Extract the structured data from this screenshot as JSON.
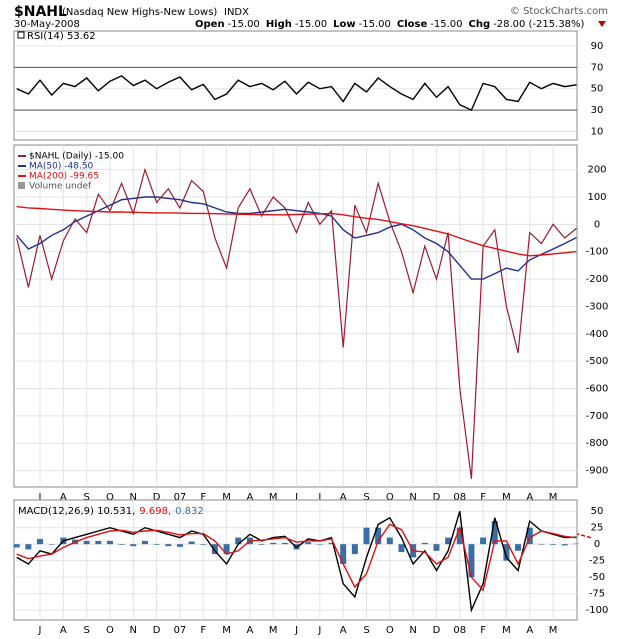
{
  "header": {
    "symbol": "$NAHL",
    "name": "(Nasdaq New Highs-New Lows)",
    "exchange": "INDX",
    "source": "© StockCharts.com",
    "date": "30-May-2008",
    "stats": [
      {
        "label": "Open",
        "value": "-15.00"
      },
      {
        "label": "High",
        "value": "-15.00"
      },
      {
        "label": "Low",
        "value": "-15.00"
      },
      {
        "label": "Close",
        "value": "-15.00"
      },
      {
        "label": "Chg",
        "value": "-28.00 (-215.38%)"
      }
    ]
  },
  "chart_data": [
    {
      "type": "line",
      "title": "RSI(14) 53.62",
      "ylim": [
        2,
        104
      ],
      "yticks": [
        90,
        70,
        50,
        30,
        10
      ],
      "ref_lines": [
        70,
        30
      ],
      "series": [
        {
          "name": "RSI(14)",
          "color": "#000000",
          "values": [
            50,
            45,
            58,
            44,
            55,
            52,
            60,
            48,
            57,
            62,
            53,
            58,
            50,
            56,
            61,
            49,
            54,
            40,
            45,
            58,
            52,
            55,
            49,
            57,
            45,
            56,
            50,
            52,
            38,
            55,
            47,
            60,
            52,
            45,
            40,
            55,
            42,
            52,
            35,
            30,
            55,
            52,
            40,
            38,
            56,
            50,
            55,
            52,
            53.62
          ]
        }
      ]
    },
    {
      "type": "line",
      "ylim": [
        -960,
        290
      ],
      "yticks": [
        200,
        100,
        0,
        -100,
        -200,
        -300,
        -400,
        -500,
        -600,
        -700,
        -800,
        -900
      ],
      "grid": true,
      "volume_label": "Volume undef",
      "categories": [
        null,
        null,
        "J",
        null,
        "A",
        null,
        "S",
        null,
        "O",
        null,
        "N",
        null,
        "D",
        null,
        "07",
        null,
        "F",
        null,
        "M",
        null,
        "A",
        null,
        "M",
        null,
        "J",
        null,
        "J",
        null,
        "A",
        null,
        "S",
        null,
        "O",
        null,
        "N",
        null,
        "D",
        null,
        "08",
        null,
        "F",
        null,
        "M",
        null,
        "A",
        null,
        "M",
        null,
        null
      ],
      "series": [
        {
          "name": "$NAHL (Daily) -15.00",
          "color": "#9b1b30",
          "values": [
            -50,
            -230,
            -40,
            -200,
            -60,
            20,
            -30,
            110,
            50,
            150,
            40,
            200,
            80,
            130,
            60,
            160,
            120,
            -50,
            -160,
            60,
            130,
            30,
            100,
            60,
            -30,
            80,
            0,
            50,
            -450,
            70,
            -30,
            150,
            10,
            -100,
            -250,
            -80,
            -200,
            -30,
            -600,
            -930,
            -80,
            -20,
            -300,
            -470,
            -30,
            -70,
            0,
            -50,
            -15
          ]
        },
        {
          "name": "MA(50) -48.50",
          "color": "#1f2f8f",
          "values": [
            -40,
            -90,
            -70,
            -40,
            -20,
            10,
            30,
            50,
            70,
            90,
            95,
            100,
            100,
            95,
            90,
            80,
            75,
            60,
            45,
            40,
            40,
            45,
            50,
            55,
            50,
            45,
            40,
            30,
            -20,
            -50,
            -40,
            -30,
            -10,
            0,
            -20,
            -50,
            -70,
            -100,
            -150,
            -200,
            -200,
            -180,
            -160,
            -170,
            -130,
            -110,
            -90,
            -70,
            -48.5
          ]
        },
        {
          "name": "MA(200) -99.65",
          "color": "#dd1111",
          "values": [
            65,
            60,
            58,
            55,
            52,
            50,
            48,
            47,
            45,
            45,
            44,
            43,
            42,
            42,
            41,
            40,
            40,
            39,
            38,
            37,
            36,
            36,
            35,
            35,
            36,
            37,
            38,
            40,
            35,
            28,
            22,
            18,
            10,
            2,
            -5,
            -15,
            -25,
            -35,
            -50,
            -65,
            -78,
            -88,
            -98,
            -108,
            -115,
            -112,
            -108,
            -104,
            -99.65
          ]
        }
      ]
    },
    {
      "type": "line",
      "ylim": [
        -115,
        67
      ],
      "yticks": [
        50,
        25,
        0,
        -25,
        -50,
        -75,
        -100
      ],
      "grid": true,
      "categories": [
        null,
        null,
        "J",
        null,
        "A",
        null,
        "S",
        null,
        "O",
        null,
        "N",
        null,
        "D",
        null,
        "07",
        null,
        "F",
        null,
        "M",
        null,
        "A",
        null,
        "M",
        null,
        "J",
        null,
        "J",
        null,
        "A",
        null,
        "S",
        null,
        "O",
        null,
        "N",
        null,
        "D",
        null,
        "08",
        null,
        "F",
        null,
        "M",
        null,
        "A",
        null,
        "M",
        null,
        null
      ],
      "series": [
        {
          "name": "MACD(12,26,9) 10.531,",
          "color": "#000000",
          "values": [
            -20,
            -30,
            -10,
            -15,
            5,
            10,
            15,
            20,
            25,
            20,
            15,
            25,
            20,
            15,
            10,
            20,
            15,
            -10,
            -30,
            0,
            15,
            5,
            10,
            12,
            -5,
            8,
            5,
            10,
            -60,
            -80,
            -20,
            30,
            40,
            10,
            -30,
            -10,
            -40,
            -10,
            50,
            -100,
            -60,
            40,
            -20,
            -40,
            35,
            20,
            15,
            10,
            10.531
          ]
        },
        {
          "name": "9.698,",
          "color": "#dd1111",
          "values": [
            -15,
            -22,
            -18,
            -15,
            -5,
            3,
            10,
            15,
            20,
            21,
            18,
            20,
            21,
            18,
            14,
            16,
            16,
            5,
            -15,
            -10,
            5,
            6,
            8,
            10,
            3,
            5,
            5,
            8,
            -30,
            -65,
            -45,
            5,
            30,
            22,
            -10,
            -12,
            -30,
            -20,
            25,
            -50,
            -70,
            5,
            5,
            -30,
            10,
            20,
            16,
            12,
            9.698
          ]
        },
        {
          "name": "0.832",
          "color": "#3a6ea5",
          "type": "bar",
          "values": [
            -5,
            -8,
            8,
            0,
            10,
            7,
            5,
            5,
            5,
            -1,
            -3,
            5,
            -1,
            -3,
            -4,
            4,
            -1,
            -15,
            -15,
            10,
            10,
            -1,
            2,
            2,
            -8,
            3,
            0,
            2,
            -30,
            -15,
            25,
            25,
            10,
            -12,
            -20,
            2,
            -10,
            10,
            25,
            -50,
            10,
            35,
            -25,
            -10,
            25,
            0,
            -1,
            -2,
            0.832
          ]
        }
      ]
    }
  ]
}
